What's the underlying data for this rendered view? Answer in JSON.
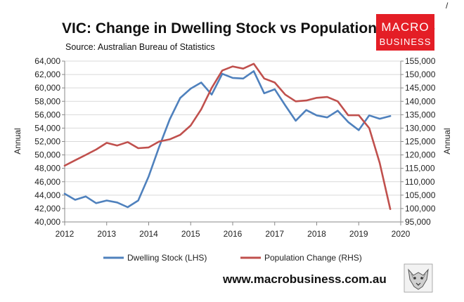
{
  "chart_data": {
    "type": "line",
    "title": "VIC: Change in Dwelling Stock vs Population Change",
    "subtitle": "Source: Australian Bureau of Statistics",
    "ylabel_left": "Annual",
    "ylabel_right": "Annual",
    "xlim": [
      2012,
      2020
    ],
    "ylim_left": [
      40000,
      64000
    ],
    "ylim_right": [
      95000,
      155000
    ],
    "x_ticks": [
      "2012",
      "2013",
      "2014",
      "2015",
      "2016",
      "2017",
      "2018",
      "2019",
      "2020"
    ],
    "y_left_ticks": [
      "40,000",
      "42,000",
      "44,000",
      "46,000",
      "48,000",
      "50,000",
      "52,000",
      "54,000",
      "56,000",
      "58,000",
      "60,000",
      "62,000",
      "64,000"
    ],
    "y_right_ticks": [
      "95,000",
      "100,000",
      "105,000",
      "110,000",
      "115,000",
      "120,000",
      "125,000",
      "130,000",
      "135,000",
      "140,000",
      "145,000",
      "150,000",
      "155,000"
    ],
    "gridlines": "horizontal",
    "legend_position": "bottom",
    "series": [
      {
        "name": "Dwelling Stock (LHS)",
        "axis": "left",
        "color": "#4f81bd",
        "x": [
          2012.0,
          2012.25,
          2012.5,
          2012.75,
          2013.0,
          2013.25,
          2013.5,
          2013.75,
          2014.0,
          2014.25,
          2014.5,
          2014.75,
          2015.0,
          2015.25,
          2015.5,
          2015.75,
          2016.0,
          2016.25,
          2016.5,
          2016.75,
          2017.0,
          2017.25,
          2017.5,
          2017.75,
          2018.0,
          2018.25,
          2018.5,
          2018.75,
          2019.0,
          2019.25,
          2019.5,
          2019.75
        ],
        "values": [
          44200,
          43300,
          43800,
          42800,
          43200,
          42900,
          42200,
          43200,
          46800,
          51200,
          55300,
          58500,
          59900,
          60800,
          59000,
          62100,
          61500,
          61400,
          62500,
          59200,
          59800,
          57400,
          55100,
          56700,
          55900,
          55600,
          56600,
          54900,
          53700,
          55900,
          55400,
          55800
        ]
      },
      {
        "name": "Population Change (RHS)",
        "axis": "right",
        "color": "#c0504d",
        "x": [
          2012.0,
          2012.25,
          2012.5,
          2012.75,
          2013.0,
          2013.25,
          2013.5,
          2013.75,
          2014.0,
          2014.25,
          2014.5,
          2014.75,
          2015.0,
          2015.25,
          2015.5,
          2015.75,
          2016.0,
          2016.25,
          2016.5,
          2016.75,
          2017.0,
          2017.25,
          2017.5,
          2017.75,
          2018.0,
          2018.25,
          2018.5,
          2018.75,
          2019.0,
          2019.25,
          2019.5,
          2019.75
        ],
        "values": [
          116000,
          118000,
          120000,
          122000,
          124500,
          123500,
          124800,
          122500,
          122800,
          125000,
          125800,
          127500,
          131000,
          137000,
          145000,
          151500,
          153000,
          152200,
          154000,
          148500,
          147000,
          142500,
          140000,
          140300,
          141300,
          141600,
          140000,
          134800,
          134800,
          130000,
          117000,
          99800
        ]
      }
    ]
  },
  "branding": {
    "logo_line1": "MACRO",
    "logo_line2": "BUSINESS",
    "logo_color": "#e41e26",
    "website": "www.macrobusiness.com.au",
    "corner_mark": "/",
    "mascot_icon": "wolf-head-icon"
  }
}
